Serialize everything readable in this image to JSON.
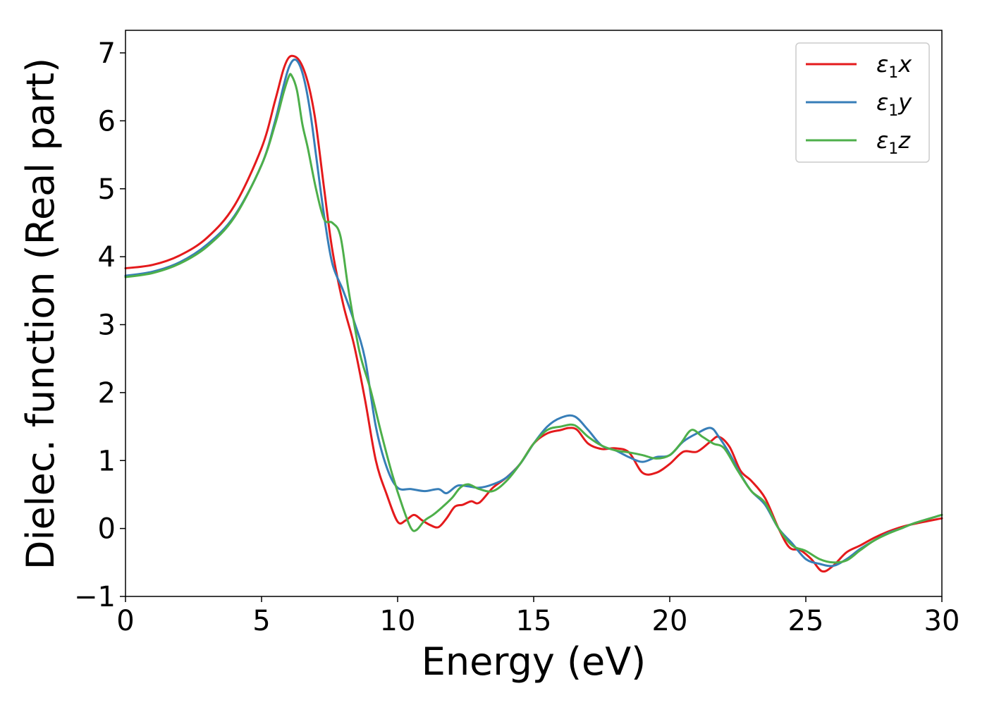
{
  "chart_data": {
    "type": "line",
    "title": "",
    "xlabel": "Energy (eV)",
    "ylabel": "Dielec. function (Real part)",
    "xlim": [
      0,
      30
    ],
    "ylim": [
      -1,
      7.3
    ],
    "xticks": [
      0,
      5,
      10,
      15,
      20,
      25,
      30
    ],
    "yticks": [
      -1,
      0,
      1,
      2,
      3,
      4,
      5,
      6,
      7
    ],
    "xtick_labels": [
      "0",
      "5",
      "10",
      "15",
      "20",
      "25",
      "30"
    ],
    "ytick_labels": [
      "−1",
      "0",
      "1",
      "2",
      "3",
      "4",
      "5",
      "6",
      "7"
    ],
    "grid": false,
    "legend_position": "top-right",
    "series": [
      {
        "name": "ε₁x",
        "symbol": "ε",
        "subscript": "1",
        "axis": "x",
        "color": "#e41a1c",
        "x": [
          0,
          1,
          2,
          3,
          4,
          5,
          5.5,
          5.8,
          6.0,
          6.2,
          6.4,
          6.6,
          6.8,
          7.0,
          7.3,
          7.6,
          8.0,
          8.4,
          8.8,
          9.2,
          9.6,
          10.0,
          10.3,
          10.6,
          10.9,
          11.2,
          11.5,
          11.8,
          12.1,
          12.4,
          12.7,
          13.0,
          13.5,
          14.0,
          14.5,
          15.0,
          15.5,
          16.0,
          16.3,
          16.6,
          17.0,
          17.5,
          18.0,
          18.5,
          19.0,
          19.5,
          20.0,
          20.5,
          21.0,
          21.5,
          21.8,
          22.2,
          22.6,
          23.0,
          23.5,
          24.0,
          24.4,
          24.8,
          25.2,
          25.6,
          26.0,
          26.5,
          27.0,
          27.5,
          28.0,
          28.5,
          29.0,
          30.0
        ],
        "y": [
          3.83,
          3.88,
          4.02,
          4.28,
          4.75,
          5.6,
          6.3,
          6.75,
          6.93,
          6.95,
          6.88,
          6.7,
          6.4,
          5.95,
          5.0,
          4.1,
          3.3,
          2.7,
          1.9,
          1.0,
          0.5,
          0.1,
          0.12,
          0.2,
          0.12,
          0.05,
          0.02,
          0.15,
          0.32,
          0.35,
          0.4,
          0.38,
          0.6,
          0.75,
          0.95,
          1.25,
          1.4,
          1.45,
          1.48,
          1.45,
          1.25,
          1.17,
          1.18,
          1.12,
          0.82,
          0.82,
          0.95,
          1.13,
          1.13,
          1.28,
          1.35,
          1.2,
          0.85,
          0.7,
          0.45,
          0.0,
          -0.28,
          -0.32,
          -0.45,
          -0.63,
          -0.55,
          -0.35,
          -0.25,
          -0.14,
          -0.05,
          0.02,
          0.07,
          0.15
        ]
      },
      {
        "name": "ε₁y",
        "symbol": "ε",
        "subscript": "1",
        "axis": "y",
        "color": "#377eb8",
        "x": [
          0,
          1,
          2,
          3,
          4,
          5,
          5.5,
          5.8,
          6.0,
          6.2,
          6.4,
          6.6,
          6.8,
          7.0,
          7.3,
          7.6,
          8.0,
          8.4,
          8.8,
          9.2,
          9.6,
          10.0,
          10.5,
          11.0,
          11.5,
          11.8,
          12.2,
          12.6,
          13.0,
          13.5,
          14.0,
          14.5,
          15.0,
          15.5,
          16.0,
          16.5,
          17.0,
          17.5,
          18.0,
          18.5,
          19.0,
          19.5,
          20.0,
          20.5,
          21.0,
          21.5,
          21.8,
          22.2,
          22.6,
          23.0,
          23.5,
          24.0,
          24.5,
          25.0,
          25.5,
          26.0,
          26.5,
          27.0,
          27.5,
          28.0,
          28.5,
          29.0,
          30.0
        ],
        "y": [
          3.72,
          3.78,
          3.92,
          4.18,
          4.6,
          5.35,
          6.0,
          6.5,
          6.78,
          6.9,
          6.82,
          6.55,
          6.1,
          5.5,
          4.6,
          3.9,
          3.5,
          3.05,
          2.5,
          1.5,
          0.9,
          0.6,
          0.58,
          0.55,
          0.58,
          0.52,
          0.63,
          0.62,
          0.6,
          0.65,
          0.75,
          0.95,
          1.25,
          1.5,
          1.63,
          1.65,
          1.45,
          1.22,
          1.15,
          1.05,
          0.98,
          1.05,
          1.08,
          1.28,
          1.4,
          1.48,
          1.35,
          1.1,
          0.8,
          0.55,
          0.35,
          0.0,
          -0.22,
          -0.45,
          -0.52,
          -0.55,
          -0.45,
          -0.3,
          -0.18,
          -0.07,
          0.0,
          0.08,
          0.2
        ]
      },
      {
        "name": "ε₁z",
        "symbol": "ε",
        "subscript": "1",
        "axis": "z",
        "color": "#4daf4a",
        "x": [
          0,
          1,
          2,
          3,
          4,
          5,
          5.5,
          5.8,
          6.0,
          6.1,
          6.3,
          6.5,
          6.7,
          7.0,
          7.3,
          7.6,
          7.9,
          8.2,
          8.6,
          9.0,
          9.4,
          9.8,
          10.2,
          10.5,
          10.7,
          11.0,
          11.3,
          11.6,
          12.0,
          12.3,
          12.6,
          13.0,
          13.5,
          14.0,
          14.5,
          15.0,
          15.5,
          16.0,
          16.5,
          17.0,
          17.5,
          18.0,
          18.5,
          19.0,
          19.5,
          20.0,
          20.4,
          20.8,
          21.2,
          21.6,
          22.0,
          22.5,
          23.0,
          23.5,
          24.0,
          24.5,
          25.0,
          25.5,
          26.0,
          26.5,
          27.0,
          27.5,
          28.0,
          28.5,
          29.0,
          30.0
        ],
        "y": [
          3.7,
          3.76,
          3.9,
          4.15,
          4.58,
          5.35,
          5.95,
          6.4,
          6.65,
          6.67,
          6.45,
          5.95,
          5.6,
          5.0,
          4.55,
          4.5,
          4.3,
          3.5,
          2.6,
          2.05,
          1.4,
          0.8,
          0.3,
          0.0,
          -0.02,
          0.12,
          0.2,
          0.3,
          0.45,
          0.6,
          0.65,
          0.58,
          0.55,
          0.7,
          0.95,
          1.25,
          1.45,
          1.5,
          1.52,
          1.35,
          1.22,
          1.15,
          1.12,
          1.08,
          1.03,
          1.08,
          1.25,
          1.45,
          1.35,
          1.25,
          1.18,
          0.85,
          0.55,
          0.38,
          0.0,
          -0.25,
          -0.33,
          -0.45,
          -0.5,
          -0.47,
          -0.32,
          -0.18,
          -0.08,
          0.0,
          0.08,
          0.2
        ]
      }
    ]
  }
}
